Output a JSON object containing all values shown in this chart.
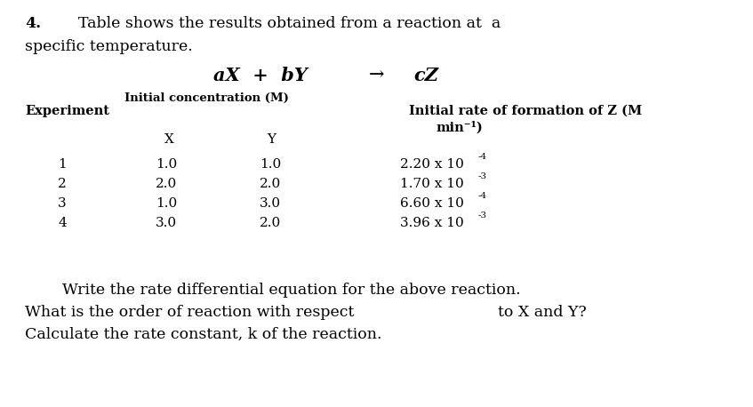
{
  "bg_color": "#ffffff",
  "text_color": "#000000",
  "figwidth": 8.47,
  "figheight": 4.58,
  "dpi": 100,
  "q_num": "4.",
  "q_text1": "Table shows the results obtained from a reaction at  a",
  "q_text2": "specific temperature.",
  "eq_left": "aX  +  bY",
  "eq_arrow": "→",
  "eq_right": "cZ",
  "conc_label": "Initial concentration (M)",
  "col_exp": "Experiment",
  "col_rate_line1": "Initial rate of formation of Z (M",
  "col_rate_line2": "min⁻¹)",
  "col_X": "X",
  "col_Y": "Y",
  "experiments": [
    "1",
    "2",
    "3",
    "4"
  ],
  "X_vals": [
    "1.0",
    "2.0",
    "1.0",
    "3.0"
  ],
  "Y_vals": [
    "1.0",
    "2.0",
    "3.0",
    "2.0"
  ],
  "rate_mantissas": [
    "2.20",
    "1.70",
    "6.60",
    "3.96"
  ],
  "rate_exponents": [
    "-4",
    "-3",
    "-4",
    "-3"
  ],
  "footer1": "Write the rate differential equation for the above reaction.",
  "footer2a": "What is the order of reaction with respect",
  "footer2b": "to X and Y?",
  "footer3": "Calculate the rate constant, k of the reaction."
}
